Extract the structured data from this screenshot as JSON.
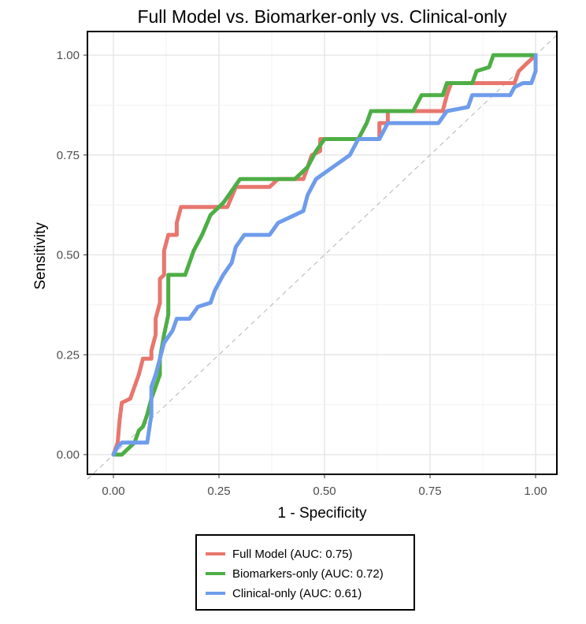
{
  "chart_data": {
    "type": "line",
    "title": "Full Model vs. Biomarker-only vs. Clinical-only",
    "xlabel": "1 - Specificity",
    "ylabel": "Sensitivity",
    "xlim": [
      0,
      1
    ],
    "ylim": [
      0,
      1
    ],
    "x_ticks": [
      "0.00",
      "0.25",
      "0.50",
      "0.75",
      "1.00"
    ],
    "y_ticks": [
      "0.00",
      "0.25",
      "0.50",
      "0.75",
      "1.00"
    ],
    "grid": true,
    "reference_line": "diagonal dashed",
    "legend_position": "bottom",
    "series": [
      {
        "name": "Full Model (AUC: 0.75)",
        "color": "#E8766D",
        "points": [
          [
            0,
            0
          ],
          [
            0.01,
            0.03
          ],
          [
            0.015,
            0.09
          ],
          [
            0.02,
            0.13
          ],
          [
            0.04,
            0.14
          ],
          [
            0.05,
            0.17
          ],
          [
            0.06,
            0.2
          ],
          [
            0.07,
            0.24
          ],
          [
            0.09,
            0.24
          ],
          [
            0.09,
            0.26
          ],
          [
            0.1,
            0.3
          ],
          [
            0.1,
            0.34
          ],
          [
            0.11,
            0.38
          ],
          [
            0.11,
            0.44
          ],
          [
            0.12,
            0.45
          ],
          [
            0.12,
            0.51
          ],
          [
            0.13,
            0.55
          ],
          [
            0.15,
            0.55
          ],
          [
            0.15,
            0.58
          ],
          [
            0.16,
            0.62
          ],
          [
            0.22,
            0.62
          ],
          [
            0.27,
            0.62
          ],
          [
            0.29,
            0.67
          ],
          [
            0.37,
            0.67
          ],
          [
            0.39,
            0.69
          ],
          [
            0.45,
            0.69
          ],
          [
            0.47,
            0.75
          ],
          [
            0.49,
            0.76
          ],
          [
            0.49,
            0.79
          ],
          [
            0.61,
            0.79
          ],
          [
            0.63,
            0.79
          ],
          [
            0.63,
            0.83
          ],
          [
            0.65,
            0.83
          ],
          [
            0.65,
            0.86
          ],
          [
            0.76,
            0.86
          ],
          [
            0.78,
            0.86
          ],
          [
            0.79,
            0.9
          ],
          [
            0.8,
            0.93
          ],
          [
            0.95,
            0.93
          ],
          [
            0.96,
            0.96
          ],
          [
            0.98,
            0.98
          ],
          [
            1,
            1
          ]
        ]
      },
      {
        "name": "Biomarkers-only (AUC: 0.72)",
        "color": "#4DAE45",
        "points": [
          [
            0,
            0
          ],
          [
            0.02,
            0
          ],
          [
            0.03,
            0.01
          ],
          [
            0.05,
            0.03
          ],
          [
            0.06,
            0.06
          ],
          [
            0.07,
            0.07
          ],
          [
            0.08,
            0.1
          ],
          [
            0.09,
            0.14
          ],
          [
            0.1,
            0.17
          ],
          [
            0.11,
            0.2
          ],
          [
            0.11,
            0.24
          ],
          [
            0.12,
            0.3
          ],
          [
            0.13,
            0.35
          ],
          [
            0.13,
            0.45
          ],
          [
            0.17,
            0.45
          ],
          [
            0.19,
            0.51
          ],
          [
            0.21,
            0.55
          ],
          [
            0.23,
            0.6
          ],
          [
            0.26,
            0.63
          ],
          [
            0.28,
            0.66
          ],
          [
            0.3,
            0.69
          ],
          [
            0.43,
            0.69
          ],
          [
            0.46,
            0.72
          ],
          [
            0.48,
            0.76
          ],
          [
            0.5,
            0.79
          ],
          [
            0.58,
            0.79
          ],
          [
            0.6,
            0.83
          ],
          [
            0.61,
            0.86
          ],
          [
            0.71,
            0.86
          ],
          [
            0.73,
            0.9
          ],
          [
            0.78,
            0.9
          ],
          [
            0.79,
            0.93
          ],
          [
            0.85,
            0.93
          ],
          [
            0.86,
            0.96
          ],
          [
            0.89,
            0.97
          ],
          [
            0.9,
            1
          ],
          [
            1,
            1
          ]
        ]
      },
      {
        "name": "Clinical-only (AUC: 0.61)",
        "color": "#6F9CEB",
        "points": [
          [
            0,
            0
          ],
          [
            0.01,
            0.02
          ],
          [
            0.02,
            0.03
          ],
          [
            0.08,
            0.03
          ],
          [
            0.09,
            0.1
          ],
          [
            0.09,
            0.17
          ],
          [
            0.1,
            0.2
          ],
          [
            0.11,
            0.24
          ],
          [
            0.12,
            0.28
          ],
          [
            0.14,
            0.31
          ],
          [
            0.15,
            0.34
          ],
          [
            0.18,
            0.34
          ],
          [
            0.2,
            0.37
          ],
          [
            0.23,
            0.38
          ],
          [
            0.24,
            0.41
          ],
          [
            0.26,
            0.45
          ],
          [
            0.28,
            0.48
          ],
          [
            0.29,
            0.52
          ],
          [
            0.31,
            0.55
          ],
          [
            0.37,
            0.55
          ],
          [
            0.39,
            0.58
          ],
          [
            0.43,
            0.6
          ],
          [
            0.45,
            0.61
          ],
          [
            0.46,
            0.65
          ],
          [
            0.48,
            0.69
          ],
          [
            0.52,
            0.72
          ],
          [
            0.56,
            0.75
          ],
          [
            0.58,
            0.79
          ],
          [
            0.63,
            0.79
          ],
          [
            0.65,
            0.83
          ],
          [
            0.77,
            0.83
          ],
          [
            0.79,
            0.86
          ],
          [
            0.84,
            0.87
          ],
          [
            0.85,
            0.9
          ],
          [
            0.94,
            0.9
          ],
          [
            0.95,
            0.92
          ],
          [
            0.97,
            0.93
          ],
          [
            0.99,
            0.93
          ],
          [
            1,
            0.96
          ],
          [
            1,
            1
          ]
        ]
      }
    ]
  }
}
